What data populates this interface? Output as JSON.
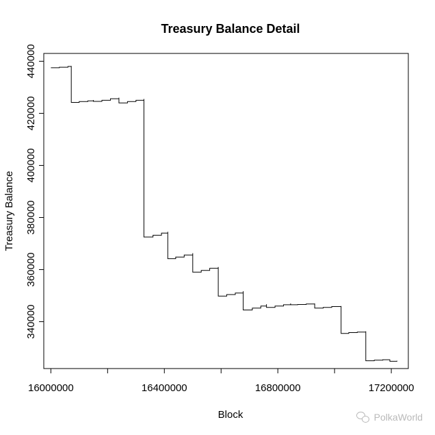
{
  "chart_data": {
    "type": "line",
    "step": true,
    "title": "Treasury Balance Detail",
    "xlabel": "Block",
    "ylabel": "Treasury Balance",
    "xlim": [
      15975000,
      17260000
    ],
    "ylim": [
      322000,
      443000
    ],
    "x_ticks": [
      16000000,
      16200000,
      16400000,
      16600000,
      16800000,
      17000000,
      17200000
    ],
    "x_tick_labels": [
      "16000000",
      "",
      "16400000",
      "",
      "16800000",
      "",
      "17200000"
    ],
    "y_ticks": [
      340000,
      360000,
      380000,
      400000,
      420000,
      440000
    ],
    "y_tick_labels": [
      "340000",
      "360000",
      "380000",
      "400000",
      "420000",
      "440000"
    ],
    "grid": false,
    "series": [
      {
        "points": [
          [
            16000000,
            437500
          ],
          [
            16030000,
            437700
          ],
          [
            16060000,
            438000
          ],
          [
            16072000,
            438200
          ],
          [
            16072000,
            424200
          ],
          [
            16100000,
            424500
          ],
          [
            16130000,
            424800
          ],
          [
            16150000,
            425100
          ],
          [
            16150000,
            424600
          ],
          [
            16180000,
            425000
          ],
          [
            16210000,
            425600
          ],
          [
            16240000,
            426000
          ],
          [
            16240000,
            424000
          ],
          [
            16270000,
            424500
          ],
          [
            16300000,
            425000
          ],
          [
            16328000,
            425500
          ],
          [
            16328000,
            372500
          ],
          [
            16360000,
            373200
          ],
          [
            16390000,
            374000
          ],
          [
            16412000,
            374500
          ],
          [
            16412000,
            364200
          ],
          [
            16440000,
            364800
          ],
          [
            16470000,
            365600
          ],
          [
            16500000,
            366300
          ],
          [
            16500000,
            359000
          ],
          [
            16530000,
            359700
          ],
          [
            16560000,
            360500
          ],
          [
            16590000,
            361000
          ],
          [
            16590000,
            349800
          ],
          [
            16620000,
            350400
          ],
          [
            16650000,
            351000
          ],
          [
            16678000,
            351700
          ],
          [
            16678000,
            344500
          ],
          [
            16710000,
            345200
          ],
          [
            16740000,
            346000
          ],
          [
            16760000,
            346700
          ],
          [
            16760000,
            345500
          ],
          [
            16790000,
            346000
          ],
          [
            16820000,
            346500
          ],
          [
            16845000,
            347000
          ],
          [
            16845000,
            346500
          ],
          [
            16870000,
            346600
          ],
          [
            16900000,
            346800
          ],
          [
            16930000,
            347000
          ],
          [
            16930000,
            345200
          ],
          [
            16960000,
            345500
          ],
          [
            16990000,
            345800
          ],
          [
            17023000,
            346000
          ],
          [
            17023000,
            335500
          ],
          [
            17050000,
            335800
          ],
          [
            17080000,
            336000
          ],
          [
            17110000,
            336300
          ],
          [
            17110000,
            325000
          ],
          [
            17140000,
            325200
          ],
          [
            17170000,
            325400
          ],
          [
            17195000,
            325500
          ],
          [
            17195000,
            324800
          ],
          [
            17220000,
            325000
          ]
        ]
      }
    ]
  },
  "watermark": {
    "text": "PolkaWorld"
  }
}
